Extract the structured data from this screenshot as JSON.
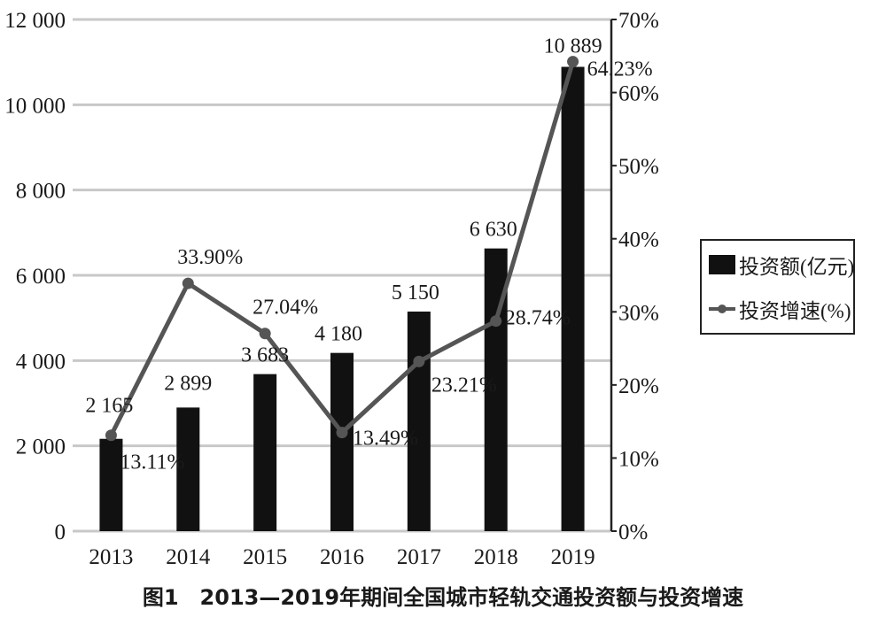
{
  "chart_data": {
    "type": "bar",
    "categories": [
      "2013",
      "2014",
      "2015",
      "2016",
      "2017",
      "2018",
      "2019"
    ],
    "series": [
      {
        "name": "投资额(亿元)",
        "type": "bar",
        "axis": "left",
        "values": [
          2165,
          2899,
          3683,
          4180,
          5150,
          6630,
          10889
        ],
        "labels": [
          "2 165",
          "2 899",
          "3 683",
          "4 180",
          "5 150",
          "6 630",
          "10 889"
        ],
        "color": "#111111"
      },
      {
        "name": "投资增速(%)",
        "type": "line",
        "axis": "right",
        "values": [
          13.11,
          33.9,
          27.04,
          13.49,
          23.21,
          28.74,
          64.23
        ],
        "labels": [
          "13.11%",
          "33.90%",
          "27.04%",
          "13.49%",
          "23.21%",
          "28.74%",
          "64.23%"
        ],
        "color": "#555555"
      }
    ],
    "y_left": {
      "ylim": [
        0,
        12000
      ],
      "ticks": [
        0,
        2000,
        4000,
        6000,
        8000,
        10000,
        12000
      ],
      "tick_labels": [
        "0",
        "2 000",
        "4 000",
        "6 000",
        "8 000",
        "10 000",
        "12 000"
      ]
    },
    "y_right": {
      "ylim": [
        0,
        70
      ],
      "ticks": [
        0,
        10,
        20,
        30,
        40,
        50,
        60,
        70
      ],
      "tick_labels": [
        "0%",
        "10%",
        "20%",
        "30%",
        "40%",
        "50%",
        "60%",
        "70%"
      ]
    },
    "grid": true,
    "legend_position": "right",
    "caption": "图1　2013—2019年期间全国城市轻轨交通投资额与投资增速"
  }
}
